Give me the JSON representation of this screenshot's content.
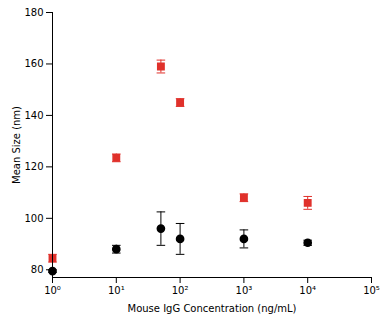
{
  "chart_data": {
    "type": "scatter",
    "x_label": "Mouse IgG Concentration (ng/mL)",
    "y_label": "Mean Size (nm)",
    "log": "x",
    "grid": false,
    "xlim": [
      1,
      100000
    ],
    "xticks": [
      {
        "value": 1,
        "label": "10⁰"
      },
      {
        "value": 10,
        "label": "10¹"
      },
      {
        "value": 100,
        "label": "10²"
      },
      {
        "value": 1000,
        "label": "10³"
      },
      {
        "value": 10000,
        "label": "10⁴"
      },
      {
        "value": 100000,
        "label": "10⁵"
      }
    ],
    "ylim": [
      77,
      180
    ],
    "yticks": [
      80,
      100,
      120,
      140,
      160,
      180
    ],
    "x": [
      1,
      10,
      50,
      100,
      1000,
      10000
    ],
    "series": [
      {
        "color": "#e0312b",
        "marker": "square",
        "values": [
          84.5,
          123.5,
          159,
          145,
          108,
          106
        ],
        "errors": [
          1.5,
          1.5,
          2.5,
          1.5,
          1.5,
          2.5
        ]
      },
      {
        "color": "#000000",
        "marker": "circle",
        "values": [
          79.5,
          88,
          96,
          92,
          92,
          90.5
        ],
        "errors": [
          0.5,
          1.5,
          6.5,
          6,
          3.5,
          1
        ]
      }
    ]
  }
}
